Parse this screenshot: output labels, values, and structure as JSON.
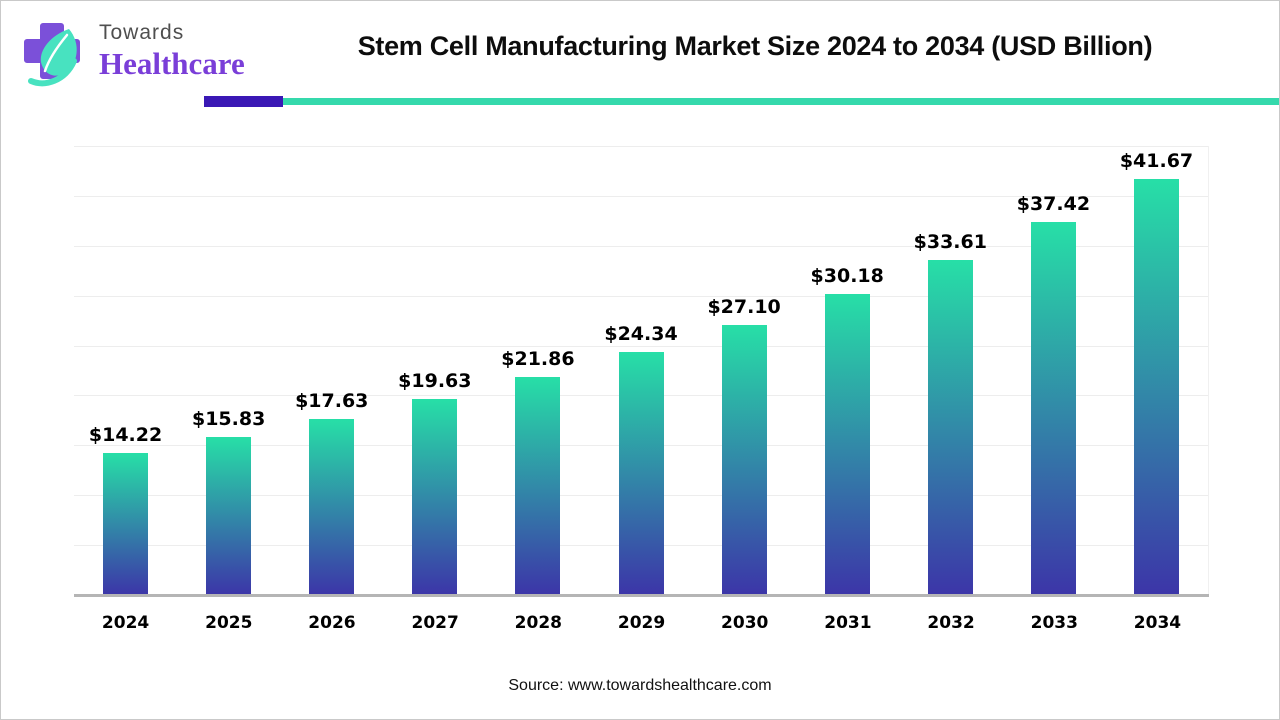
{
  "header": {
    "logo": {
      "towards": "Towards",
      "healthcare": "Healthcare",
      "cross_color": "#7b50d9",
      "leaf_color": "#48e2c0"
    },
    "title": "Stem Cell Manufacturing Market Size 2024 to 2034 (USD Billion)",
    "accent_purple": "#3a18b5",
    "accent_teal": "#35d9ac"
  },
  "chart_data": {
    "type": "bar",
    "title": "Stem Cell Manufacturing Market Size 2024 to 2034 (USD Billion)",
    "categories": [
      "2024",
      "2025",
      "2026",
      "2027",
      "2028",
      "2029",
      "2030",
      "2031",
      "2032",
      "2033",
      "2034"
    ],
    "values": [
      14.22,
      15.83,
      17.63,
      19.63,
      21.86,
      24.34,
      27.1,
      30.18,
      33.61,
      37.42,
      41.67
    ],
    "labels": [
      "$14.22",
      "$15.83",
      "$17.63",
      "$19.63",
      "$21.86",
      "$24.34",
      "$27.10",
      "$30.18",
      "$33.61",
      "$37.42",
      "$41.67"
    ],
    "xlabel": "",
    "ylabel": "",
    "ylim": [
      0,
      45
    ],
    "grid_step": 5,
    "grid": "horizontal",
    "legend": "none",
    "bar_gradient_top": "#27dfa7",
    "bar_gradient_bottom": "#3c35a8"
  },
  "footer": {
    "source": "Source: www.towardshealthcare.com"
  }
}
